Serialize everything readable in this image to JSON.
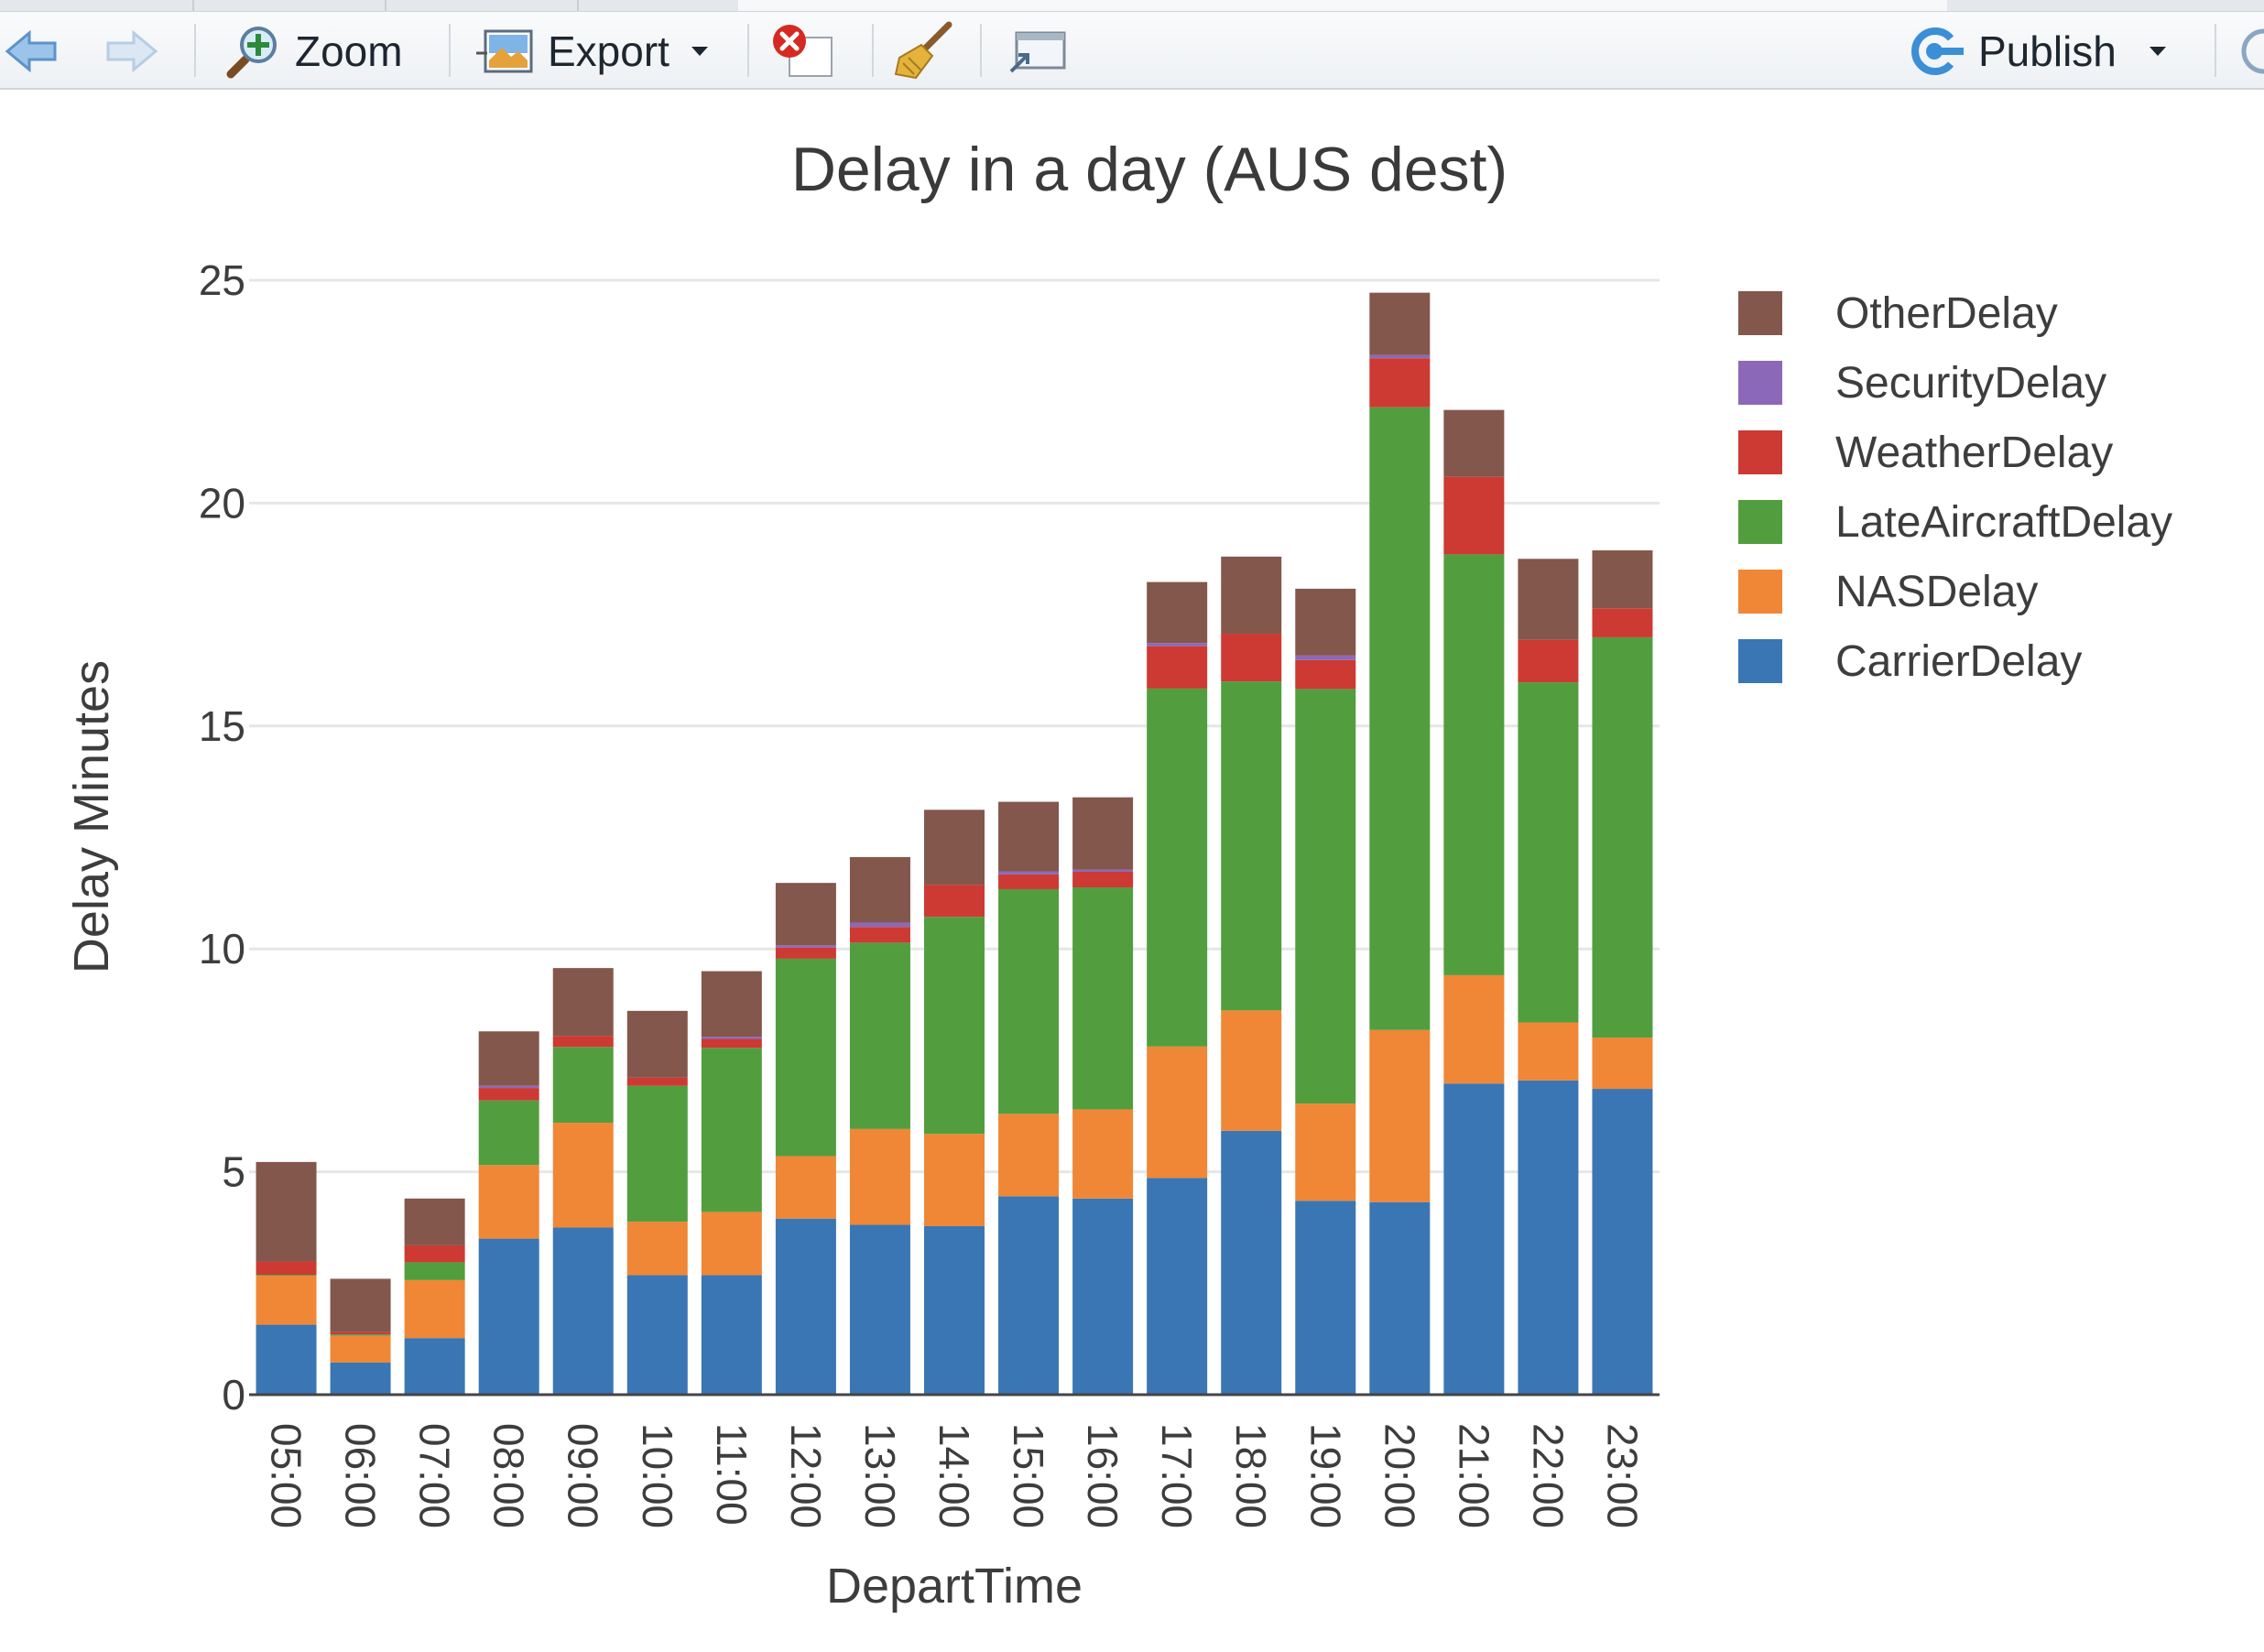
{
  "toolbar": {
    "zoom_label": "Zoom",
    "export_label": "Export",
    "publish_label": "Publish",
    "icons": {
      "back": "arrow-left-icon",
      "forward": "arrow-right-icon",
      "zoom": "magnifier-plus-icon",
      "export": "export-image-icon",
      "remove": "remove-plot-icon",
      "clear": "broom-icon",
      "popout": "popout-window-icon",
      "publish": "publish-icon"
    }
  },
  "colors": {
    "CarrierDelay": "#3a76b3",
    "NASDelay": "#ef8736",
    "LateAircraftDelay": "#529e3e",
    "WeatherDelay": "#cc3a33",
    "SecurityDelay": "#8c69b8",
    "OtherDelay": "#84574c",
    "grid": "#e6e6e6"
  },
  "chart_data": {
    "type": "bar",
    "stacked": true,
    "title": "Delay in a day (AUS dest)",
    "xlabel": "DepartTime",
    "ylabel": "Delay Minutes",
    "ylim": [
      0,
      25
    ],
    "yticks": [
      0,
      5,
      10,
      15,
      20,
      25
    ],
    "grid": true,
    "legend_position": "top-right",
    "categories": [
      "05:00",
      "06:00",
      "07:00",
      "08:00",
      "09:00",
      "10:00",
      "11:00",
      "12:00",
      "13:00",
      "14:00",
      "15:00",
      "16:00",
      "17:00",
      "18:00",
      "19:00",
      "20:00",
      "21:00",
      "22:00",
      "23:00"
    ],
    "series": [
      {
        "name": "CarrierDelay",
        "values": [
          1.57,
          0.72,
          1.27,
          3.5,
          3.75,
          2.68,
          2.68,
          3.95,
          3.81,
          3.78,
          4.45,
          4.4,
          4.86,
          5.92,
          4.35,
          4.32,
          6.98,
          7.05,
          6.86
        ]
      },
      {
        "name": "NASDelay",
        "values": [
          1.1,
          0.6,
          1.3,
          1.65,
          2.35,
          1.2,
          1.42,
          1.4,
          2.15,
          2.07,
          1.85,
          2.0,
          2.95,
          2.7,
          2.18,
          3.86,
          2.43,
          1.3,
          1.15
        ]
      },
      {
        "name": "LateAircraftDelay",
        "values": [
          0.02,
          0.03,
          0.4,
          1.45,
          1.7,
          3.05,
          3.68,
          4.43,
          4.18,
          4.87,
          5.04,
          4.98,
          8.03,
          7.38,
          9.3,
          13.97,
          9.44,
          7.63,
          8.98
        ]
      },
      {
        "name": "WeatherDelay",
        "values": [
          0.3,
          0.05,
          0.38,
          0.28,
          0.25,
          0.18,
          0.2,
          0.25,
          0.35,
          0.72,
          0.33,
          0.35,
          0.95,
          1.07,
          0.65,
          1.1,
          1.74,
          0.95,
          0.65
        ]
      },
      {
        "name": "SecurityDelay",
        "values": [
          0.0,
          0.0,
          0.0,
          0.05,
          0.0,
          0.0,
          0.05,
          0.05,
          0.1,
          0.0,
          0.07,
          0.05,
          0.07,
          0.0,
          0.1,
          0.07,
          0.0,
          0.0,
          0.0
        ]
      },
      {
        "name": "OtherDelay",
        "values": [
          2.23,
          1.2,
          1.05,
          1.22,
          1.52,
          1.5,
          1.47,
          1.4,
          1.47,
          1.68,
          1.56,
          1.62,
          1.37,
          1.73,
          1.5,
          1.4,
          1.5,
          1.82,
          1.3
        ]
      }
    ],
    "legend_order": [
      "OtherDelay",
      "SecurityDelay",
      "WeatherDelay",
      "LateAircraftDelay",
      "NASDelay",
      "CarrierDelay"
    ]
  }
}
